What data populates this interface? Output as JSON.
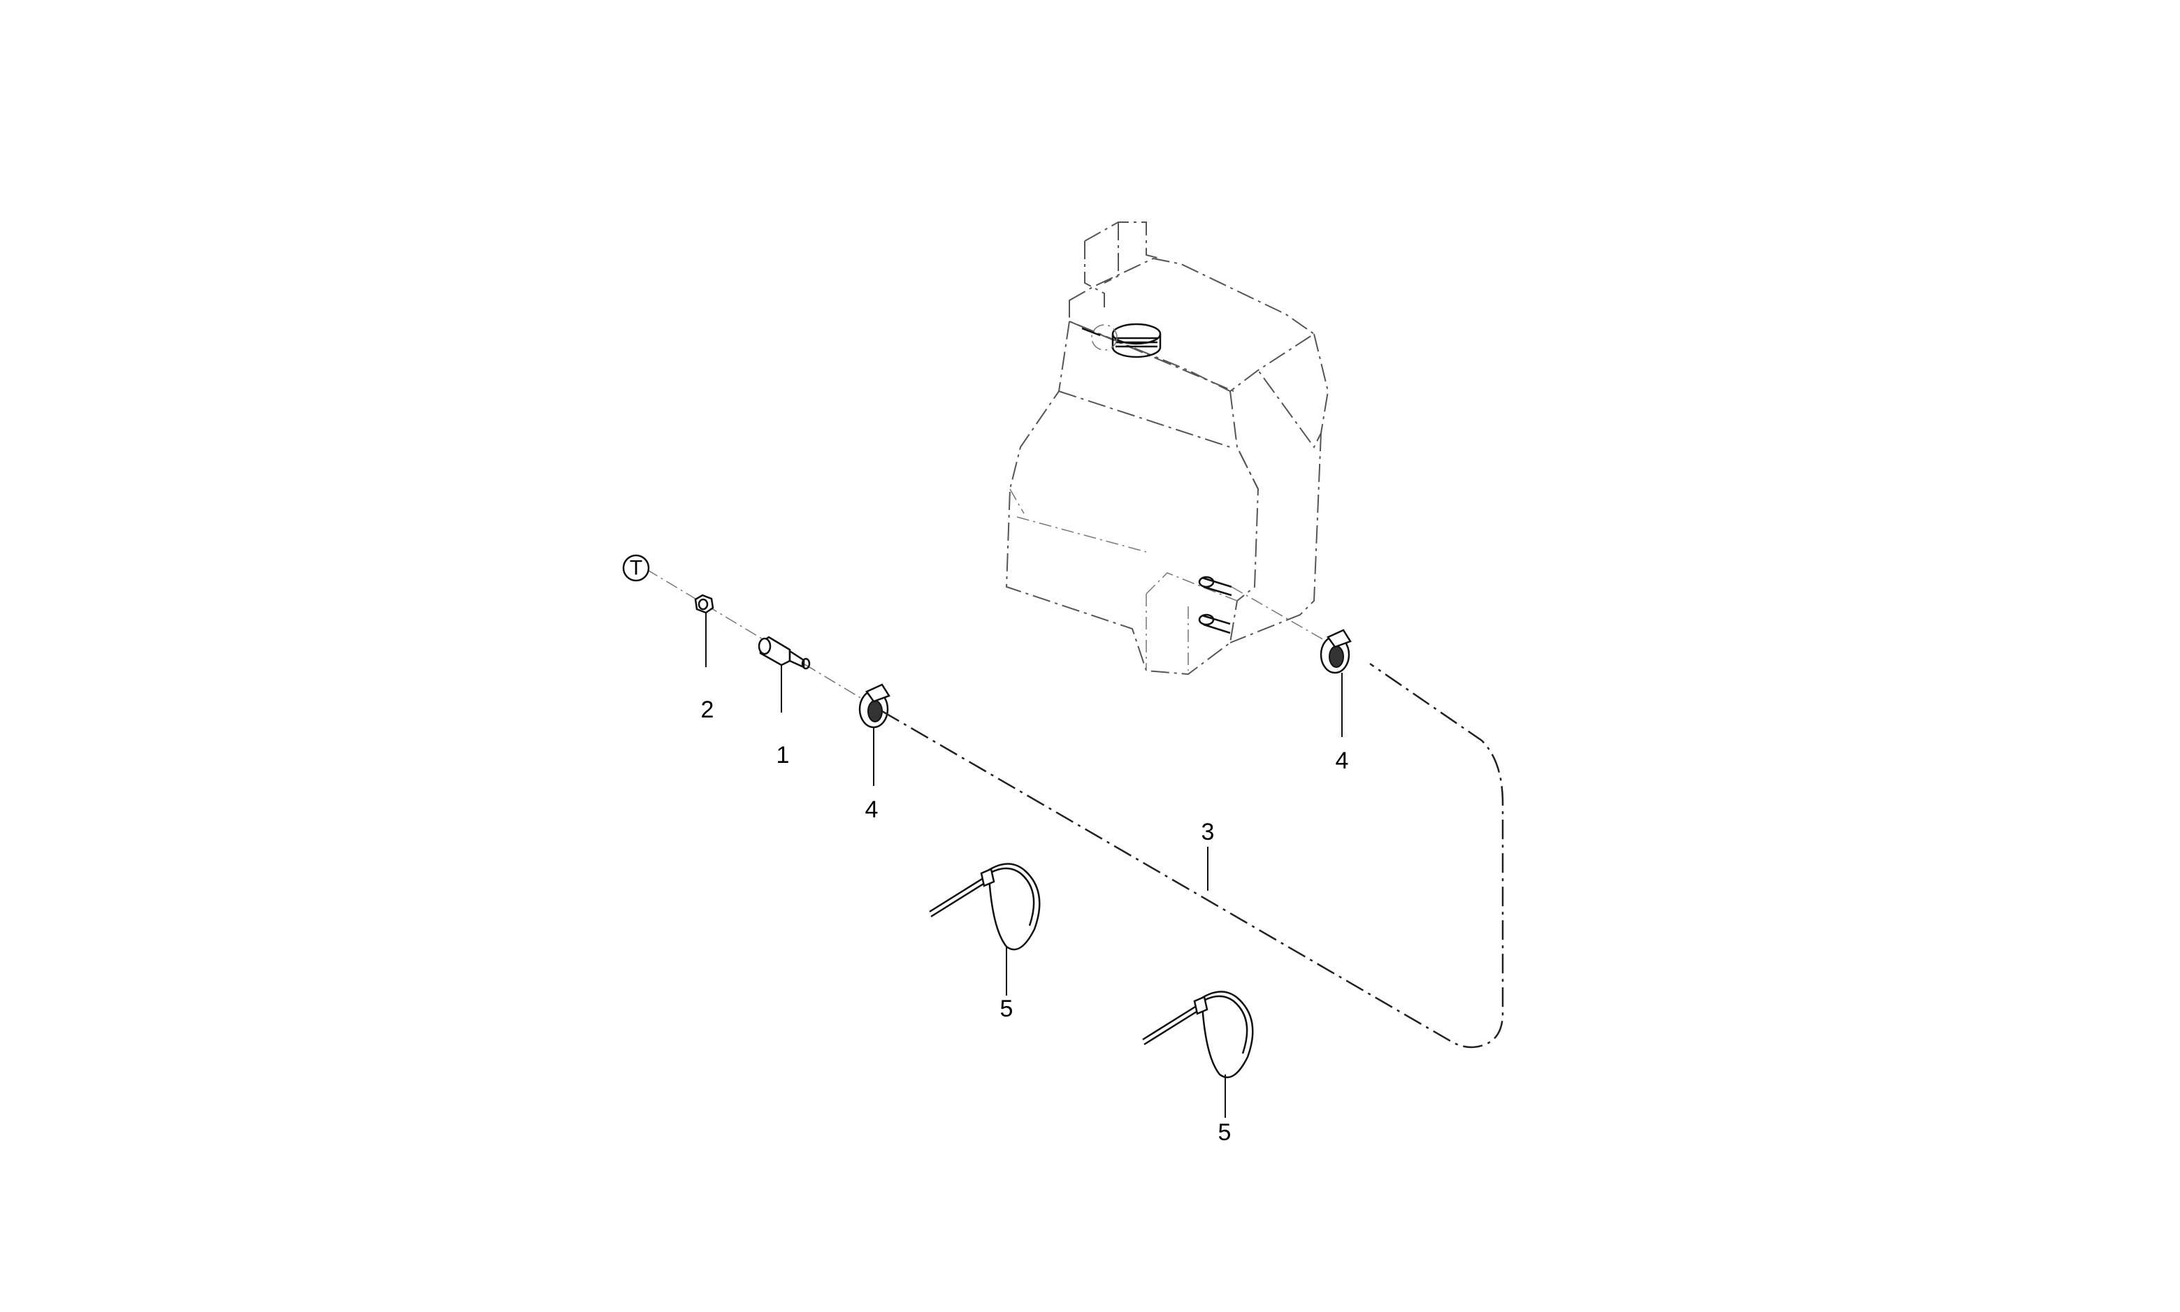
{
  "reference_symbol": {
    "letter": "T"
  },
  "callouts": [
    {
      "number": "1",
      "part": "fitting"
    },
    {
      "number": "2",
      "part": "nut"
    },
    {
      "number": "3",
      "part": "hose"
    },
    {
      "number": "4",
      "part": "clamp"
    },
    {
      "number": "4",
      "part": "clamp"
    },
    {
      "number": "5",
      "part": "cable-tie"
    },
    {
      "number": "5",
      "part": "cable-tie"
    }
  ]
}
